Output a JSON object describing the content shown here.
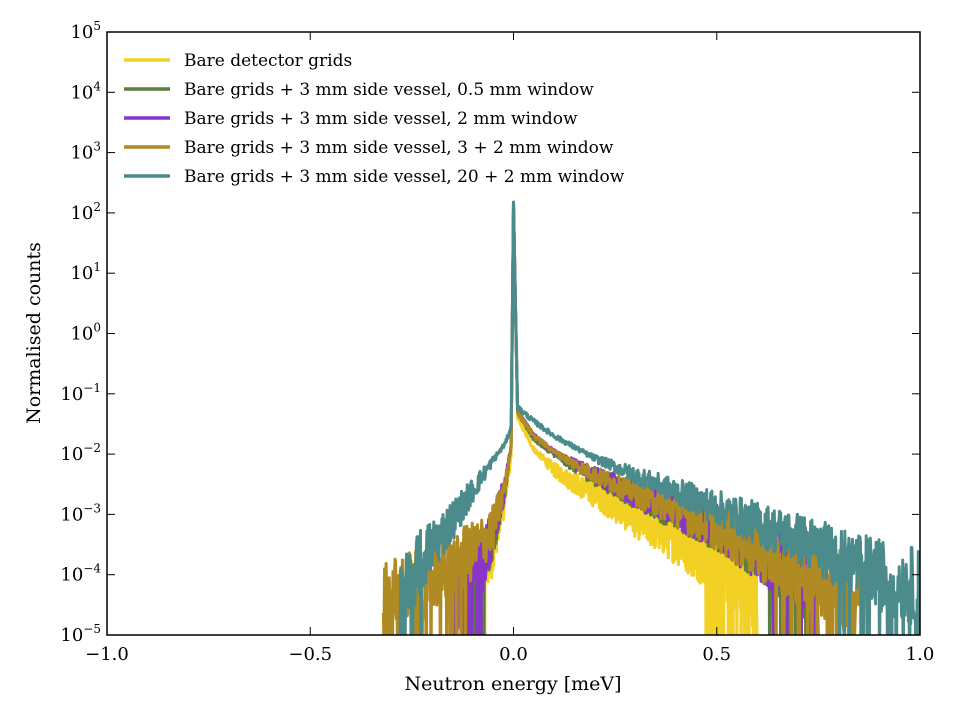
{
  "chart_data": {
    "type": "line",
    "title": "",
    "xlabel": "Neutron energy [meV]",
    "ylabel": "Normalised counts",
    "x_scale": "linear",
    "y_scale": "log",
    "xlim": [
      -1.0,
      1.0
    ],
    "ylim": [
      1e-05,
      100000
    ],
    "x_ticks": [
      {
        "value": -1.0,
        "label": "−1.0"
      },
      {
        "value": -0.5,
        "label": "−0.5"
      },
      {
        "value": 0.0,
        "label": "0.0"
      },
      {
        "value": 0.5,
        "label": "0.5"
      },
      {
        "value": 1.0,
        "label": "1.0"
      }
    ],
    "y_ticks": [
      {
        "exponent": -5,
        "base": "10",
        "exp": "−5"
      },
      {
        "exponent": -4,
        "base": "10",
        "exp": "−4"
      },
      {
        "exponent": -3,
        "base": "10",
        "exp": "−3"
      },
      {
        "exponent": -2,
        "base": "10",
        "exp": "−2"
      },
      {
        "exponent": -1,
        "base": "10",
        "exp": "−1"
      },
      {
        "exponent": 0,
        "base": "10",
        "exp": "0"
      },
      {
        "exponent": 1,
        "base": "10",
        "exp": "1"
      },
      {
        "exponent": 2,
        "base": "10",
        "exp": "2"
      },
      {
        "exponent": 3,
        "base": "10",
        "exp": "3"
      },
      {
        "exponent": 4,
        "base": "10",
        "exp": "4"
      },
      {
        "exponent": 5,
        "base": "10",
        "exp": "5"
      }
    ],
    "legend_position": "top-left",
    "peak": {
      "x": 0.0,
      "y": 150
    },
    "series": [
      {
        "name": "Bare detector grids",
        "color": "#f2d024",
        "x": [
          -0.12,
          -0.08,
          -0.05,
          -0.02,
          -0.005,
          0.0,
          0.01,
          0.05,
          0.1,
          0.15,
          0.2,
          0.25,
          0.3,
          0.35,
          0.4,
          0.45,
          0.5,
          0.55,
          0.58,
          0.6
        ],
        "y": [
          3e-05,
          0.0001,
          0.0003,
          0.002,
          0.01,
          150,
          0.04,
          0.012,
          0.0055,
          0.0033,
          0.0022,
          0.0014,
          0.0009,
          0.0006,
          0.0004,
          0.00025,
          0.00015,
          0.0001,
          5e-05,
          3e-05
        ]
      },
      {
        "name": "Bare grids + 3 mm side vessel, 0.5 mm window",
        "color": "#5a7f3c",
        "x": [
          -0.12,
          -0.1,
          -0.07,
          -0.05,
          -0.02,
          -0.005,
          0.0,
          0.01,
          0.05,
          0.1,
          0.15,
          0.2,
          0.3,
          0.4,
          0.5,
          0.6,
          0.7,
          0.75
        ],
        "y": [
          3e-05,
          0.0001,
          0.0002,
          0.0005,
          0.003,
          0.015,
          150,
          0.05,
          0.018,
          0.01,
          0.0062,
          0.0042,
          0.0021,
          0.0011,
          0.0006,
          0.00025,
          0.0001,
          3e-05
        ]
      },
      {
        "name": "Bare grids + 3 mm side vessel, 2 mm window",
        "color": "#8a35c9",
        "x": [
          -0.15,
          -0.1,
          -0.07,
          -0.05,
          -0.02,
          -0.005,
          0.0,
          0.01,
          0.05,
          0.1,
          0.15,
          0.2,
          0.3,
          0.4,
          0.5,
          0.6,
          0.7,
          0.75
        ],
        "y": [
          3e-05,
          0.0001,
          0.0002,
          0.0005,
          0.003,
          0.015,
          150,
          0.05,
          0.02,
          0.011,
          0.0068,
          0.0045,
          0.0022,
          0.0012,
          0.0006,
          0.00025,
          0.0001,
          3e-05
        ]
      },
      {
        "name": "Bare grids + 3 mm side vessel, 3 + 2 mm window",
        "color": "#b08a22",
        "x": [
          -0.32,
          -0.2,
          -0.15,
          -0.1,
          -0.07,
          -0.05,
          -0.02,
          -0.005,
          0.0,
          0.01,
          0.05,
          0.1,
          0.15,
          0.2,
          0.3,
          0.4,
          0.5,
          0.6,
          0.7,
          0.8,
          0.85
        ],
        "y": [
          3e-05,
          0.0001,
          0.00013,
          0.00025,
          0.0004,
          0.0006,
          0.003,
          0.015,
          150,
          0.05,
          0.02,
          0.011,
          0.0068,
          0.0045,
          0.0023,
          0.0012,
          0.0006,
          0.00025,
          0.00012,
          6e-05,
          3e-05
        ]
      },
      {
        "name": "Bare grids + 3 mm side vessel, 20 + 2 mm window",
        "color": "#4c8b8c",
        "x": [
          -0.28,
          -0.25,
          -0.2,
          -0.15,
          -0.1,
          -0.07,
          -0.05,
          -0.02,
          -0.005,
          0.0,
          0.01,
          0.05,
          0.1,
          0.15,
          0.2,
          0.3,
          0.4,
          0.5,
          0.6,
          0.7,
          0.8,
          0.9,
          1.0
        ],
        "y": [
          3e-05,
          0.0001,
          0.0003,
          0.0008,
          0.0025,
          0.005,
          0.008,
          0.015,
          0.03,
          150,
          0.06,
          0.035,
          0.02,
          0.013,
          0.0085,
          0.0045,
          0.0024,
          0.0013,
          0.0007,
          0.0004,
          0.0002,
          0.0001,
          6e-05
        ]
      }
    ]
  }
}
